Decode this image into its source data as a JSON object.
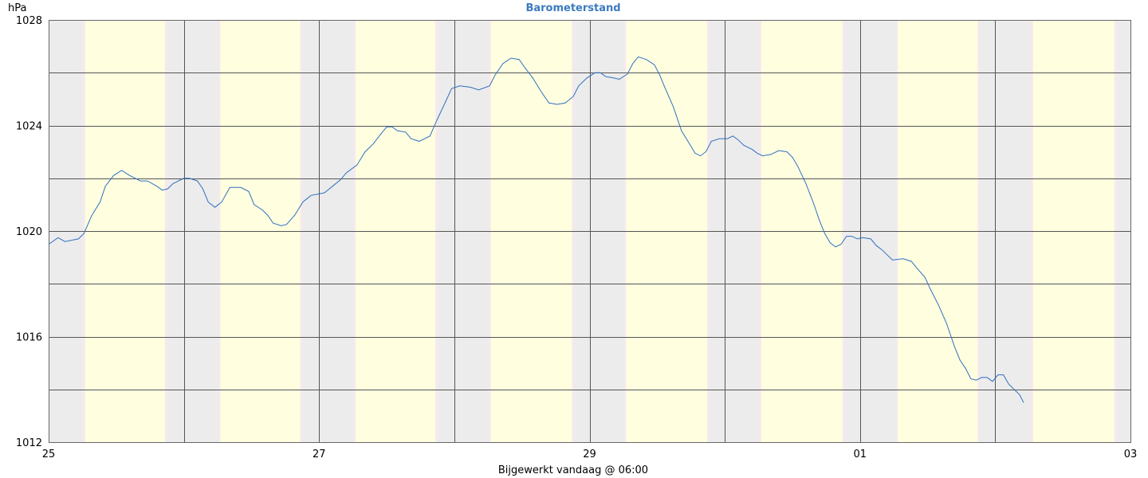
{
  "chart_data": {
    "type": "line",
    "title": "Barometerstand",
    "unit_label": "hPa",
    "footer": "Bijgewerkt vandaag @ 06:00",
    "x_unit": "days",
    "xlim": [
      0,
      8
    ],
    "ylim": [
      1012,
      1028
    ],
    "y_ticks": [
      {
        "value": 1012,
        "label": "1012"
      },
      {
        "value": 1016,
        "label": "1016"
      },
      {
        "value": 1020,
        "label": "1020"
      },
      {
        "value": 1024,
        "label": "1024"
      },
      {
        "value": 1028,
        "label": "1028"
      }
    ],
    "y_gridlines": [
      1014,
      1016,
      1018,
      1020,
      1022,
      1024,
      1026
    ],
    "x_ticks": [
      {
        "value": 0,
        "label": "25"
      },
      {
        "value": 2,
        "label": "27"
      },
      {
        "value": 4,
        "label": "29"
      },
      {
        "value": 6,
        "label": "01"
      },
      {
        "value": 8,
        "label": "03"
      }
    ],
    "x_gridlines": [
      1,
      2,
      3,
      4,
      5,
      6,
      7
    ],
    "bands": {
      "night_color": "#ececec",
      "day_color": "#ffffe0",
      "days": [
        {
          "day_start": 0.27,
          "day_end": 0.86
        },
        {
          "day_start": 1.27,
          "day_end": 1.86
        },
        {
          "day_start": 2.27,
          "day_end": 2.86
        },
        {
          "day_start": 3.27,
          "day_end": 3.87
        },
        {
          "day_start": 4.27,
          "day_end": 4.87
        },
        {
          "day_start": 5.27,
          "day_end": 5.87
        },
        {
          "day_start": 6.28,
          "day_end": 6.87
        },
        {
          "day_start": 7.28,
          "day_end": 7.88
        }
      ]
    },
    "grid": true,
    "line_color": "#2f6fc0",
    "series": [
      {
        "values": [
          [
            0.0,
            1019.5
          ],
          [
            0.07,
            1019.75
          ],
          [
            0.12,
            1019.6
          ],
          [
            0.22,
            1019.7
          ],
          [
            0.26,
            1019.9
          ],
          [
            0.32,
            1020.6
          ],
          [
            0.38,
            1021.1
          ],
          [
            0.42,
            1021.7
          ],
          [
            0.48,
            1022.1
          ],
          [
            0.54,
            1022.3
          ],
          [
            0.6,
            1022.1
          ],
          [
            0.68,
            1021.9
          ],
          [
            0.73,
            1021.9
          ],
          [
            0.8,
            1021.7
          ],
          [
            0.84,
            1021.55
          ],
          [
            0.88,
            1021.6
          ],
          [
            0.92,
            1021.8
          ],
          [
            1.0,
            1022.0
          ],
          [
            1.04,
            1022.0
          ],
          [
            1.1,
            1021.9
          ],
          [
            1.14,
            1021.6
          ],
          [
            1.18,
            1021.1
          ],
          [
            1.23,
            1020.9
          ],
          [
            1.28,
            1021.1
          ],
          [
            1.34,
            1021.65
          ],
          [
            1.42,
            1021.65
          ],
          [
            1.48,
            1021.5
          ],
          [
            1.52,
            1021.0
          ],
          [
            1.58,
            1020.8
          ],
          [
            1.62,
            1020.6
          ],
          [
            1.66,
            1020.3
          ],
          [
            1.72,
            1020.2
          ],
          [
            1.76,
            1020.25
          ],
          [
            1.82,
            1020.6
          ],
          [
            1.88,
            1021.1
          ],
          [
            1.94,
            1021.35
          ],
          [
            2.04,
            1021.45
          ],
          [
            2.1,
            1021.7
          ],
          [
            2.16,
            1021.95
          ],
          [
            2.2,
            1022.2
          ],
          [
            2.28,
            1022.5
          ],
          [
            2.34,
            1023.0
          ],
          [
            2.4,
            1023.3
          ],
          [
            2.46,
            1023.7
          ],
          [
            2.5,
            1023.95
          ],
          [
            2.54,
            1023.95
          ],
          [
            2.58,
            1023.8
          ],
          [
            2.64,
            1023.75
          ],
          [
            2.68,
            1023.5
          ],
          [
            2.74,
            1023.4
          ],
          [
            2.82,
            1023.6
          ],
          [
            2.88,
            1024.3
          ],
          [
            2.94,
            1024.95
          ],
          [
            2.98,
            1025.4
          ],
          [
            3.04,
            1025.5
          ],
          [
            3.12,
            1025.45
          ],
          [
            3.18,
            1025.35
          ],
          [
            3.26,
            1025.5
          ],
          [
            3.3,
            1025.9
          ],
          [
            3.36,
            1026.35
          ],
          [
            3.42,
            1026.55
          ],
          [
            3.48,
            1026.5
          ],
          [
            3.52,
            1026.2
          ],
          [
            3.58,
            1025.8
          ],
          [
            3.64,
            1025.3
          ],
          [
            3.7,
            1024.85
          ],
          [
            3.76,
            1024.8
          ],
          [
            3.82,
            1024.85
          ],
          [
            3.88,
            1025.1
          ],
          [
            3.92,
            1025.5
          ],
          [
            3.98,
            1025.8
          ],
          [
            4.04,
            1026.0
          ],
          [
            4.08,
            1026.0
          ],
          [
            4.12,
            1025.85
          ],
          [
            4.18,
            1025.8
          ],
          [
            4.22,
            1025.75
          ],
          [
            4.28,
            1025.95
          ],
          [
            4.32,
            1026.35
          ],
          [
            4.36,
            1026.6
          ],
          [
            4.42,
            1026.5
          ],
          [
            4.48,
            1026.3
          ],
          [
            4.52,
            1025.9
          ],
          [
            4.56,
            1025.4
          ],
          [
            4.62,
            1024.7
          ],
          [
            4.68,
            1023.8
          ],
          [
            4.74,
            1023.3
          ],
          [
            4.78,
            1022.95
          ],
          [
            4.82,
            1022.85
          ],
          [
            4.86,
            1023.0
          ],
          [
            4.9,
            1023.4
          ],
          [
            4.96,
            1023.5
          ],
          [
            5.02,
            1023.5
          ],
          [
            5.06,
            1023.6
          ],
          [
            5.1,
            1023.45
          ],
          [
            5.14,
            1023.25
          ],
          [
            5.2,
            1023.1
          ],
          [
            5.24,
            1022.95
          ],
          [
            5.28,
            1022.85
          ],
          [
            5.34,
            1022.9
          ],
          [
            5.4,
            1023.05
          ],
          [
            5.46,
            1023.0
          ],
          [
            5.5,
            1022.8
          ],
          [
            5.54,
            1022.45
          ],
          [
            5.6,
            1021.8
          ],
          [
            5.66,
            1021.0
          ],
          [
            5.7,
            1020.4
          ],
          [
            5.74,
            1019.9
          ],
          [
            5.78,
            1019.55
          ],
          [
            5.82,
            1019.4
          ],
          [
            5.86,
            1019.5
          ],
          [
            5.9,
            1019.8
          ],
          [
            5.94,
            1019.8
          ],
          [
            5.98,
            1019.7
          ],
          [
            6.02,
            1019.75
          ],
          [
            6.08,
            1019.7
          ],
          [
            6.12,
            1019.45
          ],
          [
            6.16,
            1019.3
          ],
          [
            6.2,
            1019.1
          ],
          [
            6.24,
            1018.9
          ],
          [
            6.32,
            1018.95
          ],
          [
            6.38,
            1018.85
          ],
          [
            6.42,
            1018.6
          ],
          [
            6.48,
            1018.25
          ],
          [
            6.52,
            1017.8
          ],
          [
            6.58,
            1017.2
          ],
          [
            6.64,
            1016.5
          ],
          [
            6.7,
            1015.6
          ],
          [
            6.74,
            1015.1
          ],
          [
            6.78,
            1014.8
          ],
          [
            6.82,
            1014.4
          ],
          [
            6.86,
            1014.35
          ],
          [
            6.9,
            1014.45
          ],
          [
            6.94,
            1014.45
          ],
          [
            6.98,
            1014.3
          ],
          [
            7.02,
            1014.55
          ],
          [
            7.06,
            1014.55
          ],
          [
            7.1,
            1014.2
          ],
          [
            7.14,
            1014.0
          ],
          [
            7.18,
            1013.8
          ],
          [
            7.21,
            1013.5
          ]
        ]
      }
    ]
  }
}
